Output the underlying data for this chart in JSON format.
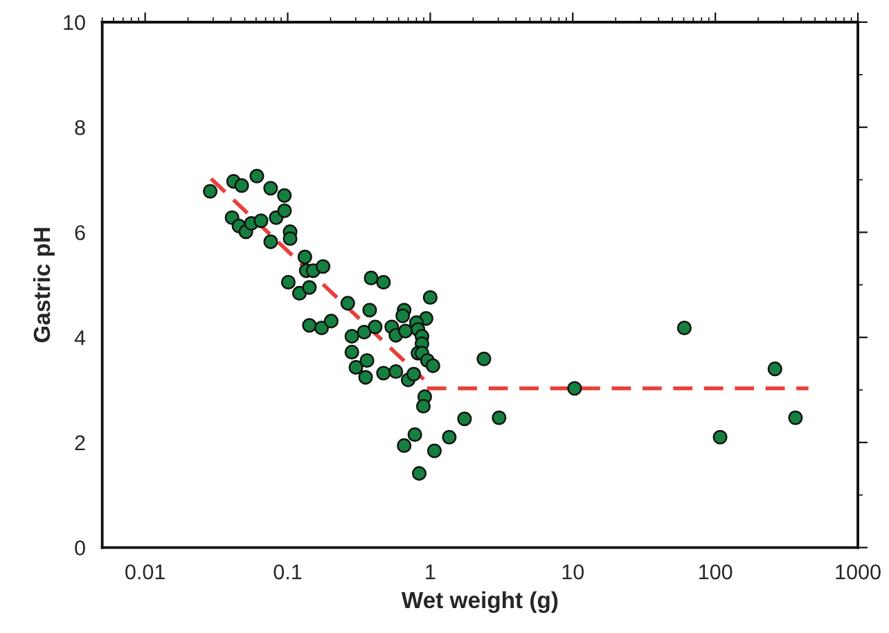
{
  "chart_data": {
    "type": "scatter",
    "xlabel": "Wet weight (g)",
    "ylabel": "Gastric pH",
    "log": "x",
    "xlim": [
      0.005,
      1000
    ],
    "xticks": [
      {
        "value": 0.01,
        "label": "0.01"
      },
      {
        "value": 0.1,
        "label": "0.1"
      },
      {
        "value": 1,
        "label": "1"
      },
      {
        "value": 10,
        "label": "10"
      },
      {
        "value": 100,
        "label": "100"
      },
      {
        "value": 1000,
        "label": "1000"
      }
    ],
    "ylim": [
      0,
      10
    ],
    "yticks": [
      0,
      2,
      4,
      6,
      8,
      10
    ],
    "grid": false,
    "legend": false,
    "series": [
      {
        "color": "#15803f",
        "marker": "circle",
        "x": [
          0.0286,
          0.0417,
          0.0476,
          0.0608,
          0.0759,
          0.0948,
          0.0407,
          0.0455,
          0.0509,
          0.0556,
          0.065,
          0.083,
          0.095,
          0.076,
          0.104,
          0.104,
          0.132,
          0.135,
          0.151,
          0.177,
          0.101,
          0.121,
          0.142,
          0.142,
          0.173,
          0.202,
          0.385,
          0.47,
          0.264,
          0.376,
          1.0,
          0.656,
          0.641,
          0.935,
          0.8,
          0.282,
          0.344,
          0.411,
          0.537,
          0.574,
          0.67,
          0.82,
          0.875,
          0.875,
          0.82,
          0.875,
          0.956,
          1.045,
          0.282,
          0.301,
          0.36,
          0.352,
          0.47,
          0.574,
          0.7,
          0.766,
          0.915,
          0.895,
          2.38,
          1.74,
          1.36,
          0.78,
          0.656,
          1.07,
          0.837,
          3.04,
          10.3,
          60.6,
          108,
          262,
          365
        ],
        "values": [
          6.78,
          6.97,
          6.89,
          7.07,
          6.84,
          6.7,
          6.28,
          6.12,
          6.01,
          6.17,
          6.22,
          6.28,
          6.41,
          5.82,
          6.01,
          5.88,
          5.53,
          5.27,
          5.27,
          5.35,
          5.05,
          4.84,
          4.95,
          4.23,
          4.18,
          4.31,
          5.13,
          5.05,
          4.65,
          4.52,
          4.76,
          4.52,
          4.41,
          4.36,
          4.28,
          4.02,
          4.1,
          4.2,
          4.2,
          4.04,
          4.12,
          4.15,
          4.02,
          3.88,
          3.7,
          3.7,
          3.56,
          3.46,
          3.72,
          3.43,
          3.56,
          3.24,
          3.32,
          3.35,
          3.19,
          3.3,
          2.87,
          2.69,
          3.59,
          2.45,
          2.1,
          2.15,
          1.94,
          1.84,
          1.41,
          2.47,
          3.03,
          4.18,
          2.1,
          3.4,
          2.47
        ]
      },
      {
        "type": "line",
        "color": "#e8403a",
        "line_style": "dashed",
        "marker": "none",
        "x": [
          0.029,
          0.9
        ],
        "values": [
          7.02,
          3.2
        ]
      },
      {
        "type": "line",
        "color": "#e8403a",
        "line_style": "dashed",
        "marker": "none",
        "x": [
          0.95,
          450
        ],
        "values": [
          3.03,
          3.03
        ]
      }
    ]
  }
}
